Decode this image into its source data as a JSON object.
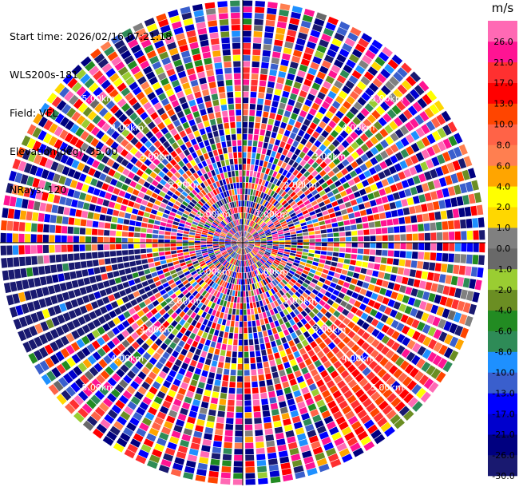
{
  "info": {
    "start_time": "Start time: 2026/02/16 07:21:18",
    "instrument": "WLS200s-181",
    "field": "Field: VEL",
    "elevation": "Elevation(deg): 35.00",
    "nrays": "NRays: 120"
  },
  "chart_data": {
    "type": "polar-ppi",
    "field": "VEL",
    "nrays": 120,
    "elevation_deg": 35.0,
    "range_rings_km": [
      1,
      2,
      3,
      4,
      5
    ],
    "ring_label": "km",
    "colorbar": {
      "unit": "m/s",
      "boundaries": [
        -30.0,
        -26.0,
        -21.0,
        -17.0,
        -13.0,
        -10.0,
        -8.0,
        -6.0,
        -4.0,
        -2.0,
        -1.0,
        0.0,
        1.0,
        2.0,
        4.0,
        6.0,
        8.0,
        10.0,
        13.0,
        17.0,
        21.0,
        26.0
      ],
      "tick_labels": [
        "-30.0",
        "-26.0",
        "-21.0",
        "-17.0",
        "-13.0",
        "-10.0",
        "-8.0",
        "-6.0",
        "-4.0",
        "-2.0",
        "-1.0",
        "0.0",
        "1.0",
        "2.0",
        "4.0",
        "6.0",
        "8.0",
        "10.0",
        "13.0",
        "17.0",
        "21.0",
        "26.0"
      ],
      "colors": [
        "#191970",
        "#000080",
        "#0000cd",
        "#0000ff",
        "#3a5fcd",
        "#1e90ff",
        "#2e8b57",
        "#228b22",
        "#6b8e23",
        "#9acd32",
        "#696969",
        "#808080",
        "#ffd700",
        "#ffff00",
        "#ffa500",
        "#ff7f50",
        "#ff6347",
        "#ff4500",
        "#ff0000",
        "#ff3030",
        "#ff1493",
        "#ff69b4"
      ]
    },
    "regions": [
      {
        "description": "dominant negative velocities (dark navy)",
        "azimuth_deg": [
          240,
          268
        ],
        "range_km": [
          2.5,
          6.3
        ],
        "value_range": [
          -30,
          -26
        ]
      },
      {
        "description": "positive velocities (orange/red)",
        "azimuth_deg": [
          125,
          152
        ],
        "range_km": [
          3.2,
          6.0
        ],
        "value_range": [
          8,
          21
        ]
      }
    ]
  }
}
